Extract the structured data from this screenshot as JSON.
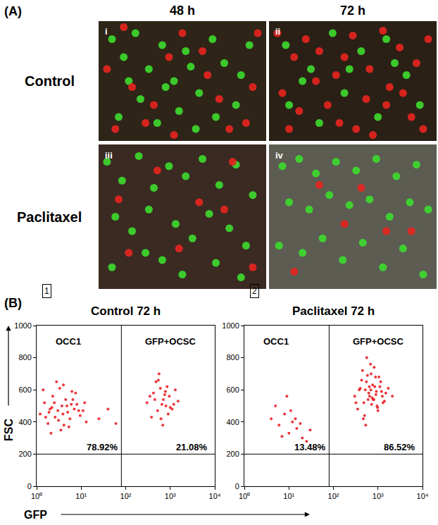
{
  "panels": [
    {
      "label": "(A)",
      "columns": [
        "48 h",
        "72 h"
      ],
      "rows": [
        "Control",
        "Paclitaxel"
      ]
    },
    {
      "label": "(B)",
      "x_label": "GFP",
      "y_label": "FSC"
    }
  ],
  "chart_data": [
    {
      "type": "scatter",
      "title": "i",
      "tick_labels": false,
      "xlim": [
        0,
        100
      ],
      "ylim": [
        0,
        100
      ],
      "series": [
        {
          "color": "#3ddc2e",
          "x": [
            8,
            15,
            22,
            30,
            38,
            45,
            52,
            60,
            68,
            75,
            82,
            90,
            12,
            25,
            35,
            48,
            58,
            70,
            85,
            40,
            55,
            18
          ],
          "y": [
            85,
            70,
            90,
            60,
            80,
            50,
            75,
            40,
            85,
            65,
            30,
            80,
            20,
            35,
            15,
            25,
            10,
            20,
            55,
            45,
            62,
            50
          ]
        },
        {
          "color": "#e8251f",
          "x": [
            5,
            20,
            33,
            42,
            50,
            65,
            78,
            92,
            10,
            28,
            62,
            72,
            88,
            45,
            15,
            95
          ],
          "y": [
            60,
            45,
            30,
            70,
            90,
            55,
            10,
            45,
            10,
            15,
            75,
            35,
            15,
            5,
            95,
            90
          ]
        }
      ]
    },
    {
      "type": "scatter",
      "title": "ii",
      "tick_labels": false,
      "xlim": [
        0,
        100
      ],
      "ylim": [
        0,
        100
      ],
      "series": [
        {
          "color": "#3ddc2e",
          "x": [
            10,
            25,
            38,
            12,
            55,
            70,
            82,
            30,
            45,
            65,
            90,
            20,
            48,
            75
          ],
          "y": [
            80,
            60,
            90,
            30,
            75,
            85,
            55,
            15,
            40,
            20,
            30,
            50,
            60,
            65
          ]
        },
        {
          "color": "#e8251f",
          "x": [
            5,
            15,
            22,
            30,
            40,
            50,
            60,
            68,
            78,
            88,
            95,
            8,
            18,
            35,
            42,
            58,
            72,
            85,
            92,
            28,
            52,
            62,
            80,
            12,
            45,
            70
          ],
          "y": [
            90,
            70,
            85,
            75,
            55,
            88,
            60,
            92,
            78,
            65,
            85,
            40,
            25,
            30,
            15,
            35,
            45,
            20,
            10,
            50,
            10,
            5,
            40,
            10,
            70,
            30
          ]
        }
      ]
    },
    {
      "type": "scatter",
      "title": "iii",
      "tick_labels": false,
      "xlim": [
        0,
        100
      ],
      "ylim": [
        0,
        100
      ],
      "series": [
        {
          "color": "#3ddc2e",
          "x": [
            5,
            14,
            24,
            33,
            42,
            52,
            62,
            72,
            82,
            92,
            10,
            20,
            30,
            46,
            56,
            66,
            78,
            88,
            8,
            38,
            50,
            70,
            85,
            28
          ],
          "y": [
            88,
            75,
            92,
            70,
            85,
            78,
            90,
            72,
            86,
            65,
            50,
            40,
            55,
            45,
            35,
            52,
            42,
            30,
            15,
            20,
            10,
            18,
            8,
            25
          ]
        },
        {
          "color": "#e8251f",
          "x": [
            12,
            35,
            60,
            80,
            18,
            48,
            75,
            92
          ],
          "y": [
            62,
            82,
            60,
            88,
            25,
            28,
            55,
            15
          ]
        }
      ]
    },
    {
      "type": "scatter",
      "title": "iv",
      "tick_labels": false,
      "xlim": [
        0,
        100
      ],
      "ylim": [
        0,
        100
      ],
      "series": [
        {
          "color": "#3ddc2e",
          "x": [
            8,
            18,
            28,
            40,
            52,
            64,
            76,
            88,
            12,
            24,
            36,
            48,
            60,
            72,
            84,
            95,
            6,
            20,
            32,
            44,
            56,
            68,
            80,
            92
          ],
          "y": [
            85,
            90,
            80,
            88,
            82,
            90,
            78,
            86,
            60,
            55,
            65,
            58,
            62,
            50,
            60,
            55,
            30,
            25,
            35,
            20,
            32,
            15,
            28,
            10
          ]
        },
        {
          "color": "#e8251f",
          "x": [
            30,
            55,
            70,
            15,
            45,
            85
          ],
          "y": [
            72,
            70,
            40,
            12,
            45,
            40
          ]
        }
      ]
    },
    {
      "type": "scatter",
      "panel": "1",
      "title": "Control 72 h",
      "log": "x",
      "xlim": [
        1,
        10000
      ],
      "xticks": [
        {
          "value": 1,
          "label": "10⁰"
        },
        {
          "value": 10,
          "label": "10¹"
        },
        {
          "value": 100,
          "label": "10²"
        },
        {
          "value": 1000,
          "label": "10³"
        },
        {
          "value": 10000,
          "label": "10⁴"
        }
      ],
      "ylim": [
        0,
        1000
      ],
      "yticks": [
        0,
        200,
        400,
        600,
        800,
        1000
      ],
      "gates": {
        "x": 80,
        "y": 200
      },
      "series": [
        {
          "name": "OCC1",
          "percent": 78.92,
          "percent_label": "78.92%",
          "color": "#e8141a",
          "x": [
            1.2,
            1.5,
            1.8,
            2.0,
            2.3,
            2.6,
            3.0,
            3.3,
            3.7,
            4.1,
            4.5,
            5.0,
            5.6,
            6.2,
            7.0,
            8.0,
            9.5,
            11,
            13,
            2.8,
            3.5,
            1.4,
            2.1,
            4.8,
            6.5,
            3.1,
            2.5,
            1.9,
            5.3,
            7.5,
            4.0,
            2.2,
            3.9,
            6.0,
            1.6,
            8.8,
            12,
            25,
            40,
            60
          ],
          "y": [
            450,
            520,
            390,
            480,
            560,
            430,
            470,
            610,
            500,
            380,
            540,
            460,
            420,
            590,
            480,
            510,
            440,
            470,
            400,
            650,
            350,
            600,
            330,
            500,
            540,
            410,
            520,
            460,
            370,
            580,
            630,
            490,
            450,
            510,
            430,
            470,
            520,
            420,
            480,
            390
          ]
        },
        {
          "name": "GFP+OCSC",
          "percent": 21.08,
          "percent_label": "21.08%",
          "color": "#e8141a",
          "x": [
            300,
            420,
            520,
            600,
            700,
            800,
            950,
            1100,
            1300,
            380,
            480,
            650,
            750,
            900,
            1500,
            350,
            560,
            680,
            850,
            1000,
            450,
            620,
            780,
            1200,
            540
          ],
          "y": [
            520,
            580,
            470,
            610,
            540,
            500,
            560,
            480,
            600,
            430,
            650,
            510,
            570,
            450,
            530,
            560,
            700,
            380,
            620,
            490,
            540,
            420,
            590,
            510,
            660
          ]
        }
      ]
    },
    {
      "type": "scatter",
      "panel": "2",
      "title": "Paclitaxel 72 h",
      "log": "x",
      "xlim": [
        1,
        10000
      ],
      "xticks": [
        {
          "value": 1,
          "label": "10⁰"
        },
        {
          "value": 10,
          "label": "10¹"
        },
        {
          "value": 100,
          "label": "10²"
        },
        {
          "value": 1000,
          "label": "10³"
        },
        {
          "value": 10000,
          "label": "10⁴"
        }
      ],
      "ylim": [
        0,
        1000
      ],
      "yticks": [
        0,
        200,
        400,
        600,
        800,
        1000
      ],
      "gates": {
        "x": 80,
        "y": 200
      },
      "series": [
        {
          "name": "OCC1",
          "percent": 13.48,
          "percent_label": "13.48%",
          "color": "#e8141a",
          "x": [
            4,
            6,
            8,
            10,
            12,
            15,
            20,
            25,
            5,
            9,
            14,
            30,
            7,
            18,
            11
          ],
          "y": [
            420,
            380,
            450,
            330,
            400,
            360,
            300,
            280,
            500,
            560,
            420,
            350,
            310,
            390,
            470
          ]
        },
        {
          "name": "GFP+OCSC",
          "percent": 86.52,
          "percent_label": "86.52%",
          "color": "#e8141a",
          "x": [
            300,
            400,
            480,
            550,
            620,
            700,
            780,
            850,
            950,
            1050,
            1200,
            1400,
            1700,
            2100,
            350,
            450,
            520,
            600,
            680,
            760,
            900,
            1000,
            1150,
            1300,
            380,
            500,
            580,
            650,
            720,
            820,
            920,
            1100,
            1500,
            320,
            430,
            530,
            640,
            740,
            880,
            980,
            1250,
            560,
            690,
            810,
            470
          ],
          "y": [
            560,
            610,
            520,
            650,
            580,
            700,
            540,
            620,
            500,
            680,
            590,
            530,
            610,
            560,
            480,
            720,
            600,
            540,
            760,
            630,
            570,
            470,
            650,
            520,
            600,
            440,
            690,
            560,
            510,
            740,
            590,
            620,
            580,
            520,
            660,
            380,
            620,
            550,
            680,
            490,
            560,
            800,
            600,
            540,
            420
          ]
        }
      ]
    }
  ]
}
